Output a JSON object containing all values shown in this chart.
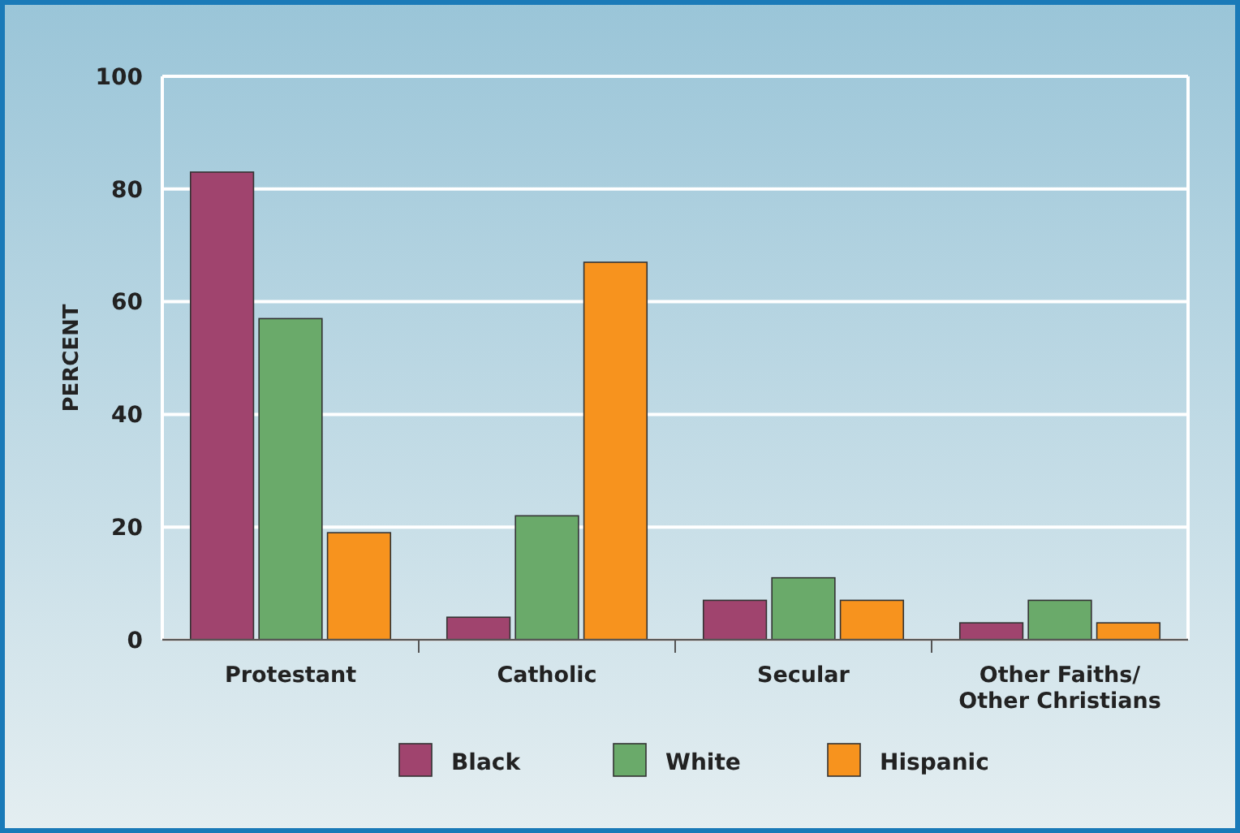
{
  "chart_data": {
    "type": "bar",
    "ylabel": "PERCENT",
    "categories": [
      "Protestant",
      "Catholic",
      "Secular",
      "Other Faiths/\nOther Christians"
    ],
    "series": [
      {
        "name": "Black",
        "color": "#a0446e",
        "values": [
          83,
          4,
          7,
          3
        ]
      },
      {
        "name": "White",
        "color": "#6aaa6a",
        "values": [
          57,
          22,
          11,
          7
        ]
      },
      {
        "name": "Hispanic",
        "color": "#f7931e",
        "values": [
          19,
          67,
          7,
          3
        ]
      }
    ],
    "ylim": [
      0,
      100
    ],
    "yticks": [
      0,
      20,
      40,
      60,
      80,
      100
    ],
    "grid": "y",
    "legend": "bottom"
  }
}
